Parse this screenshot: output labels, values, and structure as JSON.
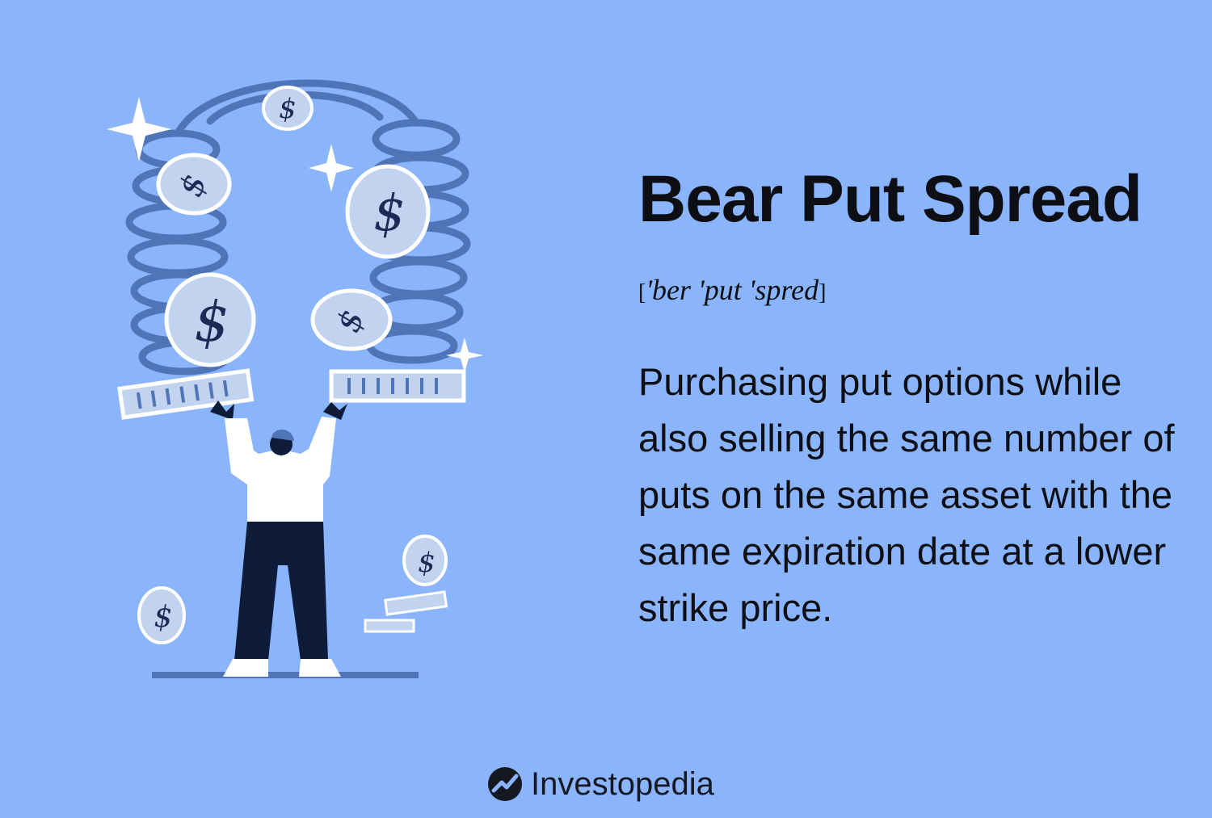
{
  "title": "Bear Put Spread",
  "pronunciation": {
    "open_bracket": "[",
    "text": "'ber 'put 'spred",
    "close_bracket": "]"
  },
  "definition": "Purchasing put options while also selling the same number of puts on the same asset with the same expiration date at a lower strike price.",
  "brand": {
    "name": "Investopedia",
    "icon": "investopedia-logo-icon"
  },
  "colors": {
    "background": "#8ab4fb",
    "text": "#0d0f14",
    "spring": "#4f75b8",
    "coin": "#c2d3f0",
    "figure_pants": "#0e1c3a"
  }
}
